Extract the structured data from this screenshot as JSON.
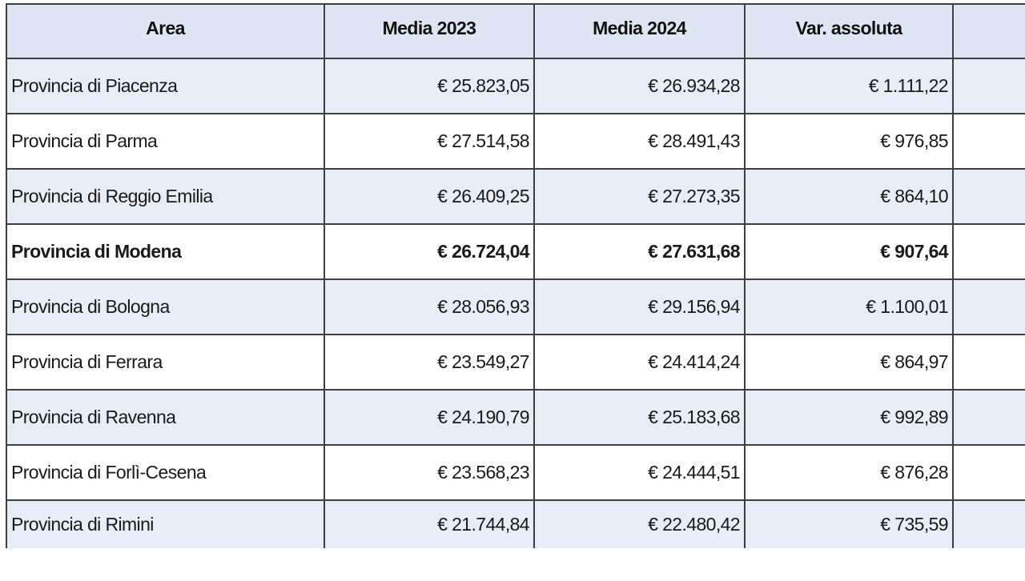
{
  "table": {
    "headers": {
      "area": "Area",
      "media_2023": "Media 2023",
      "media_2024": "Media 2024",
      "var_assoluta": "Var. assoluta",
      "extra": ""
    },
    "rows": [
      {
        "area": "Provincia di Piacenza",
        "media_2023": "€ 25.823,05",
        "media_2024": "€ 26.934,28",
        "var_assoluta": "€ 1.111,22",
        "bold": false
      },
      {
        "area": "Provincia di Parma",
        "media_2023": "€ 27.514,58",
        "media_2024": "€ 28.491,43",
        "var_assoluta": "€ 976,85",
        "bold": false
      },
      {
        "area": "Provincia di Reggio Emilia",
        "media_2023": "€ 26.409,25",
        "media_2024": "€ 27.273,35",
        "var_assoluta": "€ 864,10",
        "bold": false
      },
      {
        "area": "Provincia di Modena",
        "media_2023": "€ 26.724,04",
        "media_2024": "€ 27.631,68",
        "var_assoluta": "€ 907,64",
        "bold": true
      },
      {
        "area": "Provincia di Bologna",
        "media_2023": "€ 28.056,93",
        "media_2024": "€ 29.156,94",
        "var_assoluta": "€ 1.100,01",
        "bold": false
      },
      {
        "area": "Provincia di Ferrara",
        "media_2023": "€ 23.549,27",
        "media_2024": "€ 24.414,24",
        "var_assoluta": "€ 864,97",
        "bold": false
      },
      {
        "area": "Provincia di Ravenna",
        "media_2023": "€ 24.190,79",
        "media_2024": "€ 25.183,68",
        "var_assoluta": "€ 992,89",
        "bold": false
      },
      {
        "area": "Provincia di Forlì-Cesena",
        "media_2023": "€ 23.568,23",
        "media_2024": "€ 24.444,51",
        "var_assoluta": "€ 876,28",
        "bold": false
      },
      {
        "area": "Provincia di Rimini",
        "media_2023": "€ 21.744,84",
        "media_2024": "€ 22.480,42",
        "var_assoluta": "€ 735,59",
        "bold": false
      }
    ]
  },
  "colors": {
    "header_bg": "#dde6f2",
    "row_shade": "#e8eef7",
    "row_plain": "#ffffff",
    "border": "#3f3f3f"
  }
}
